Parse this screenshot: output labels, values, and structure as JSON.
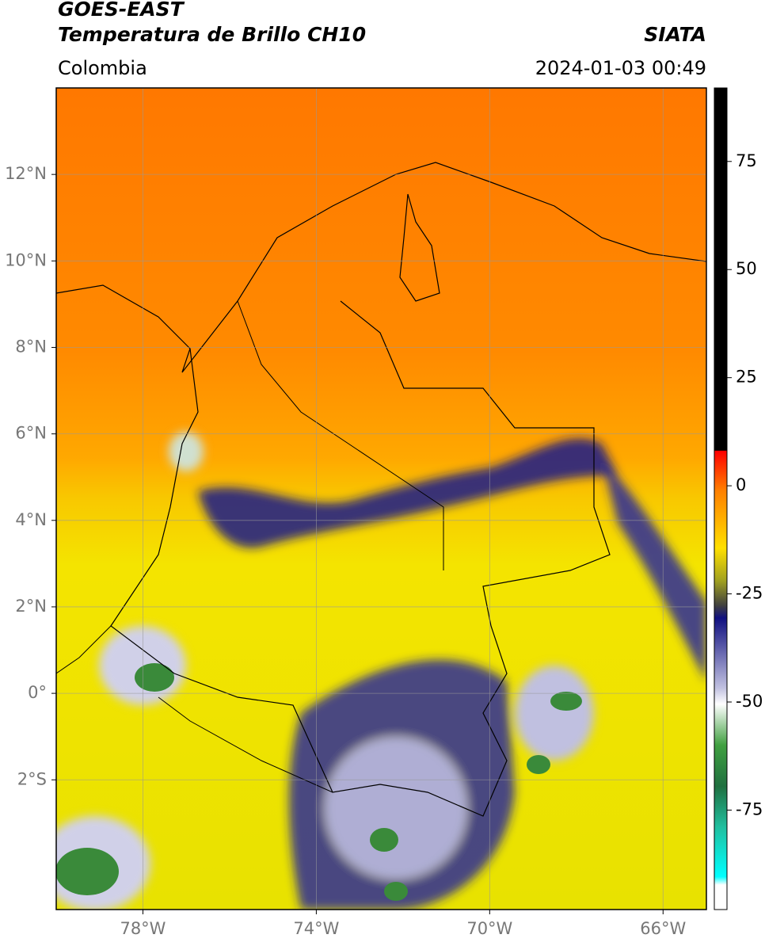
{
  "header": {
    "title": "GOES-EAST",
    "subtitle": "Temperatura de Brillo CH10",
    "source": "SIATA",
    "region": "Colombia",
    "datetime": "2024-01-03 00:49"
  },
  "map": {
    "xlim": [
      -80,
      -65
    ],
    "ylim": [
      -5,
      14
    ],
    "xticks": [
      {
        "value": -78,
        "label": "78°W"
      },
      {
        "value": -74,
        "label": "74°W"
      },
      {
        "value": -70,
        "label": "70°W"
      },
      {
        "value": -66,
        "label": "66°W"
      }
    ],
    "yticks": [
      {
        "value": 12,
        "label": "12°N"
      },
      {
        "value": 10,
        "label": "10°N"
      },
      {
        "value": 8,
        "label": "8°N"
      },
      {
        "value": 6,
        "label": "6°N"
      },
      {
        "value": 4,
        "label": "4°N"
      },
      {
        "value": 2,
        "label": "2°N"
      },
      {
        "value": 0,
        "label": "0°"
      },
      {
        "value": -2,
        "label": "2°S"
      }
    ],
    "grid": true
  },
  "colorbar": {
    "lim": [
      -98,
      92
    ],
    "ticks": [
      75,
      50,
      25,
      0,
      -25,
      -50,
      -75
    ]
  }
}
